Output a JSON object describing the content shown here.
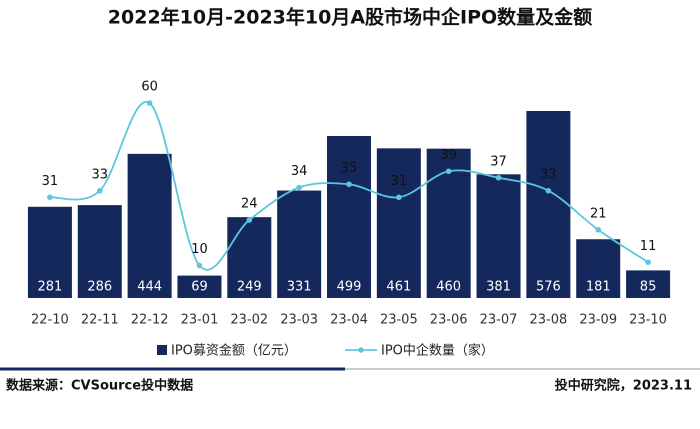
{
  "chart_data": {
    "type": "bar",
    "title": "2022年10月-2023年10月A股市场中企IPO数量及金额",
    "categories": [
      "22-10",
      "22-11",
      "22-12",
      "23-01",
      "23-02",
      "23-03",
      "23-04",
      "23-05",
      "23-06",
      "23-07",
      "23-08",
      "23-09",
      "23-10"
    ],
    "series": [
      {
        "name": "IPO募资金额（亿元）",
        "type": "bar",
        "color": "#14285c",
        "values": [
          281,
          286,
          444,
          69,
          249,
          331,
          499,
          461,
          460,
          381,
          576,
          181,
          85
        ]
      },
      {
        "name": "IPO中企数量（家）",
        "type": "line",
        "axis": "y2",
        "color": "#5bc6e0",
        "values": [
          31,
          33,
          60,
          10,
          24,
          34,
          35,
          31,
          39,
          37,
          33,
          21,
          11
        ]
      }
    ],
    "legend": "bottom"
  },
  "footer": {
    "source": "数据来源：CVSource投中数据",
    "credit": "投中研究院，2023.11"
  }
}
